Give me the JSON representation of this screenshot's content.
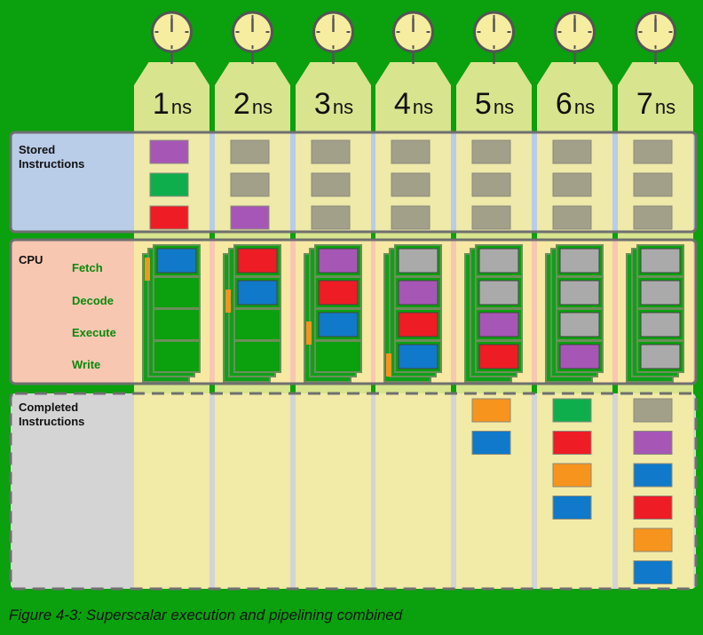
{
  "colors": {
    "background": "#0aa00e",
    "stored_panel": "#b9cce8",
    "cpu_panel": "#f8c7b2",
    "completed_panel": "#d4d4d4",
    "column": "#f6eda0",
    "purple": "#a657b6",
    "green": "#0fae4c",
    "red": "#ee1c25",
    "blue": "#1079c9",
    "orange": "#f7941d",
    "gray": "#a3a08a",
    "slot_gray": "#aaaaaa"
  },
  "time_steps": [
    {
      "num": "1",
      "unit": "ns"
    },
    {
      "num": "2",
      "unit": "ns"
    },
    {
      "num": "3",
      "unit": "ns"
    },
    {
      "num": "4",
      "unit": "ns"
    },
    {
      "num": "5",
      "unit": "ns"
    },
    {
      "num": "6",
      "unit": "ns"
    },
    {
      "num": "7",
      "unit": "ns"
    }
  ],
  "sections": {
    "stored": "Stored\nInstructions",
    "cpu": "CPU",
    "completed": "Completed\nInstructions"
  },
  "stages": [
    "Fetch",
    "Decode",
    "Execute",
    "Write"
  ],
  "stored_instructions": [
    [
      "purple",
      "green",
      "red"
    ],
    [
      "gray",
      "gray",
      "purple"
    ],
    [
      "gray",
      "gray",
      "gray"
    ],
    [
      "gray",
      "gray",
      "gray"
    ],
    [
      "gray",
      "gray",
      "gray"
    ],
    [
      "gray",
      "gray",
      "gray"
    ],
    [
      "gray",
      "gray",
      "gray"
    ]
  ],
  "cpu_pipeline": [
    [
      "blue",
      "green",
      "green",
      "green"
    ],
    [
      "red",
      "blue",
      "green",
      "green"
    ],
    [
      "purple",
      "red",
      "blue",
      "green"
    ],
    [
      "slot_gray",
      "purple",
      "red",
      "blue"
    ],
    [
      "slot_gray",
      "slot_gray",
      "purple",
      "red"
    ],
    [
      "slot_gray",
      "slot_gray",
      "slot_gray",
      "purple"
    ],
    [
      "slot_gray",
      "slot_gray",
      "slot_gray",
      "slot_gray"
    ]
  ],
  "completed_instructions": [
    [],
    [],
    [],
    [],
    [
      "orange",
      "blue"
    ],
    [
      "green",
      "red",
      "orange",
      "blue"
    ],
    [
      "gray",
      "purple",
      "blue",
      "red",
      "orange",
      "blue"
    ]
  ],
  "caption": "Figure 4-3: Superscalar execution and pipelining combined"
}
